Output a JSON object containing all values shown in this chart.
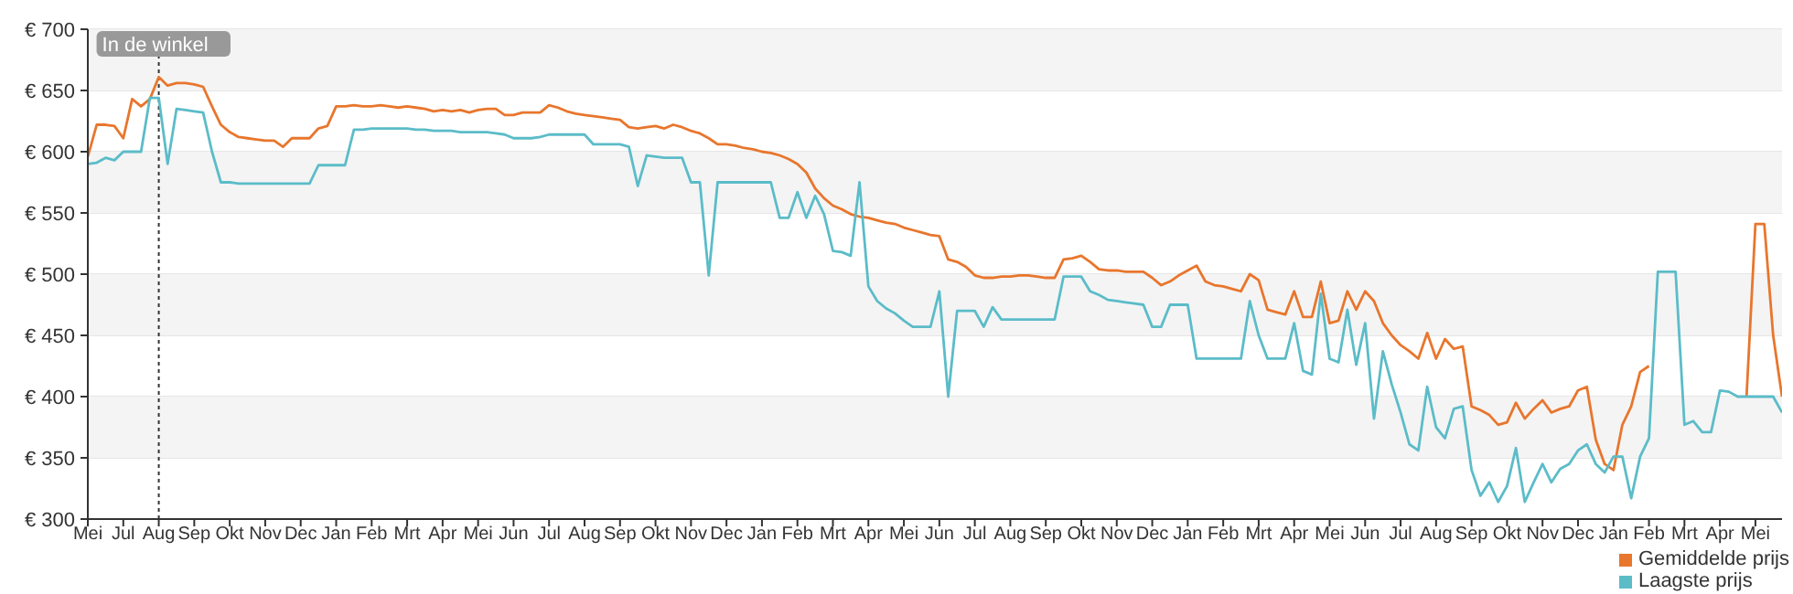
{
  "chart_data": {
    "type": "line",
    "ylim": [
      300,
      700
    ],
    "categories": [
      "Mei",
      null,
      null,
      null,
      "Jul",
      null,
      null,
      null,
      "Aug",
      null,
      null,
      null,
      "Sep",
      null,
      null,
      null,
      "Okt",
      null,
      null,
      null,
      "Nov",
      null,
      null,
      null,
      "Dec",
      null,
      null,
      null,
      "Jan",
      null,
      null,
      null,
      "Feb",
      null,
      null,
      null,
      "Mrt",
      null,
      null,
      null,
      "Apr",
      null,
      null,
      null,
      "Mei",
      null,
      null,
      null,
      "Jun",
      null,
      null,
      null,
      "Jul",
      null,
      null,
      null,
      "Aug",
      null,
      null,
      null,
      "Sep",
      null,
      null,
      null,
      "Okt",
      null,
      null,
      null,
      "Nov",
      null,
      null,
      null,
      "Dec",
      null,
      null,
      null,
      "Jan",
      null,
      null,
      null,
      "Feb",
      null,
      null,
      null,
      "Mrt",
      null,
      null,
      null,
      "Apr",
      null,
      null,
      null,
      "Mei",
      null,
      null,
      null,
      "Jun",
      null,
      null,
      null,
      "Jul",
      null,
      null,
      null,
      "Aug",
      null,
      null,
      null,
      "Sep",
      null,
      null,
      null,
      "Okt",
      null,
      null,
      null,
      "Nov",
      null,
      null,
      null,
      "Dec",
      null,
      null,
      null,
      "Jan",
      null,
      null,
      null,
      "Feb",
      null,
      null,
      null,
      "Mrt",
      null,
      null,
      null,
      "Apr",
      null,
      null,
      null,
      "Mei",
      null,
      null,
      null,
      "Jun",
      null,
      null,
      null,
      "Jul",
      null,
      null,
      null,
      "Aug",
      null,
      null,
      null,
      "Sep",
      null,
      null,
      null,
      "Okt",
      null,
      null,
      null,
      "Nov",
      null,
      null,
      null,
      "Dec",
      null,
      null,
      null,
      "Jan",
      null,
      null,
      null,
      "Feb",
      null,
      null,
      null,
      "Mrt",
      null,
      null,
      null,
      "Apr",
      null,
      null,
      null,
      "Mei",
      null,
      null,
      null
    ],
    "yticks": [
      {
        "value": 300,
        "label": "€ 300"
      },
      {
        "value": 350,
        "label": "€ 350"
      },
      {
        "value": 400,
        "label": "€ 400"
      },
      {
        "value": 450,
        "label": "€ 450"
      },
      {
        "value": 500,
        "label": "€ 500"
      },
      {
        "value": 550,
        "label": "€ 550"
      },
      {
        "value": 600,
        "label": "€ 600"
      },
      {
        "value": 650,
        "label": "€ 650"
      },
      {
        "value": 700,
        "label": "€ 700"
      }
    ],
    "grid": "y",
    "legend": "bottom right",
    "marker": "none",
    "line_style": "solid",
    "ref_lines": [
      {
        "axis": "x",
        "value": "Aug",
        "label": "In de winkel",
        "color": "#333333",
        "line_style": "dotted"
      }
    ],
    "series": [
      {
        "name": "Gemiddelde prijs",
        "color": "#e8762d",
        "values": [
          596,
          622,
          622,
          621,
          611,
          643,
          637,
          643,
          661,
          654,
          656,
          656,
          655,
          653,
          637,
          622,
          616,
          612,
          611,
          610,
          609,
          609,
          604,
          611,
          611,
          611,
          619,
          621,
          637,
          637,
          638,
          637,
          637,
          638,
          637,
          636,
          637,
          636,
          635,
          633,
          634,
          633,
          634,
          632,
          634,
          635,
          635,
          630,
          630,
          632,
          632,
          632,
          638,
          636,
          633,
          631,
          630,
          629,
          628,
          627,
          626,
          620,
          619,
          620,
          621,
          619,
          622,
          620,
          617,
          615,
          611,
          606,
          606,
          605,
          603,
          602,
          600,
          599,
          597,
          594,
          590,
          583,
          570,
          562,
          556,
          553,
          549,
          547,
          546,
          544,
          542,
          541,
          538,
          536,
          534,
          532,
          531,
          512,
          510,
          506,
          499,
          497,
          497,
          498,
          498,
          499,
          499,
          498,
          497,
          497,
          512,
          513,
          515,
          510,
          504,
          503,
          503,
          502,
          502,
          502,
          497,
          491,
          494,
          499,
          503,
          507,
          494,
          491,
          490,
          488,
          486,
          500,
          495,
          471,
          469,
          467,
          486,
          465,
          465,
          494,
          460,
          462,
          486,
          471,
          486,
          478,
          460,
          450,
          442,
          437,
          431,
          452,
          431,
          447,
          439,
          441,
          392,
          389,
          385,
          377,
          379,
          395,
          382,
          390,
          397,
          387,
          390,
          392,
          405,
          408,
          365,
          345,
          340,
          377,
          392,
          420,
          425,
          null,
          null,
          null,
          null,
          null,
          null,
          null,
          null,
          null,
          null,
          400,
          541,
          541,
          450,
          400
        ]
      },
      {
        "name": "Laagste prijs",
        "color": "#5bbcc8",
        "values": [
          590,
          591,
          595,
          593,
          600,
          600,
          600,
          644,
          644,
          590,
          635,
          634,
          633,
          632,
          600,
          575,
          575,
          574,
          574,
          574,
          574,
          574,
          574,
          574,
          574,
          574,
          589,
          589,
          589,
          589,
          618,
          618,
          619,
          619,
          619,
          619,
          619,
          618,
          618,
          617,
          617,
          617,
          616,
          616,
          616,
          616,
          615,
          614,
          611,
          611,
          611,
          612,
          614,
          614,
          614,
          614,
          614,
          606,
          606,
          606,
          606,
          604,
          572,
          597,
          596,
          595,
          595,
          595,
          575,
          575,
          499,
          575,
          575,
          575,
          575,
          575,
          575,
          575,
          546,
          546,
          567,
          546,
          564,
          549,
          519,
          518,
          515,
          575,
          490,
          478,
          472,
          468,
          462,
          457,
          457,
          457,
          486,
          400,
          470,
          470,
          470,
          457,
          473,
          463,
          463,
          463,
          463,
          463,
          463,
          463,
          498,
          498,
          498,
          486,
          483,
          479,
          478,
          477,
          476,
          475,
          457,
          457,
          475,
          475,
          475,
          431,
          431,
          431,
          431,
          431,
          431,
          478,
          450,
          431,
          431,
          431,
          460,
          421,
          418,
          484,
          431,
          428,
          471,
          426,
          460,
          382,
          437,
          410,
          387,
          361,
          356,
          408,
          375,
          366,
          390,
          392,
          340,
          319,
          330,
          314,
          327,
          358,
          314,
          330,
          345,
          330,
          341,
          345,
          356,
          361,
          345,
          338,
          351,
          351,
          317,
          351,
          366,
          502,
          502,
          502,
          377,
          380,
          371,
          371,
          405,
          404,
          400,
          400,
          400,
          400,
          400,
          387
        ]
      }
    ]
  }
}
